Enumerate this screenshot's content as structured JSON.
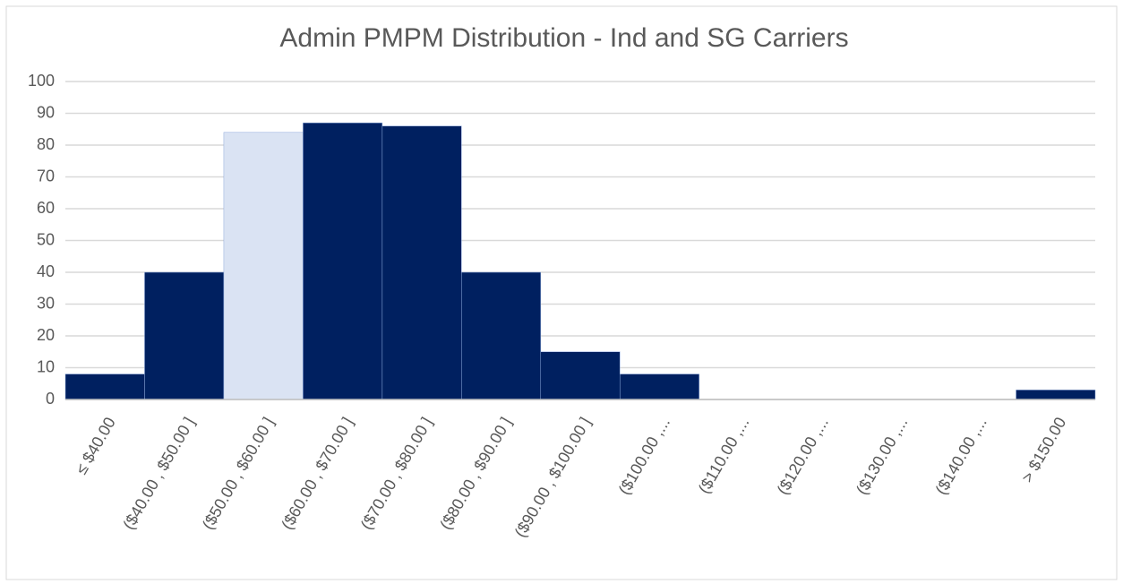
{
  "chart_data": {
    "type": "bar",
    "title": "Admin PMPM Distribution - Ind and SG Carriers",
    "categories": [
      "≤ $40.00",
      "($40.00 , $50.00 ]",
      "($50.00 , $60.00 ]",
      "($60.00 , $70.00 ]",
      "($70.00 , $80.00 ]",
      "($80.00 , $90.00 ]",
      "($90.00 , $100.00 ]",
      "($100.00 ,...",
      "($110.00 ,...",
      "($120.00 ,...",
      "($130.00 ,...",
      "($140.00 ,...",
      "> $150.00"
    ],
    "values": [
      8,
      40,
      84,
      87,
      86,
      40,
      15,
      8,
      0,
      0,
      0,
      0,
      3
    ],
    "colors": [
      "#002060",
      "#002060",
      "#dae3f3",
      "#002060",
      "#002060",
      "#002060",
      "#002060",
      "#002060",
      "#002060",
      "#002060",
      "#002060",
      "#002060",
      "#002060"
    ],
    "ylim": [
      0,
      100
    ],
    "yticks": [
      0,
      10,
      20,
      30,
      40,
      50,
      60,
      70,
      80,
      90,
      100
    ],
    "grid": true
  }
}
